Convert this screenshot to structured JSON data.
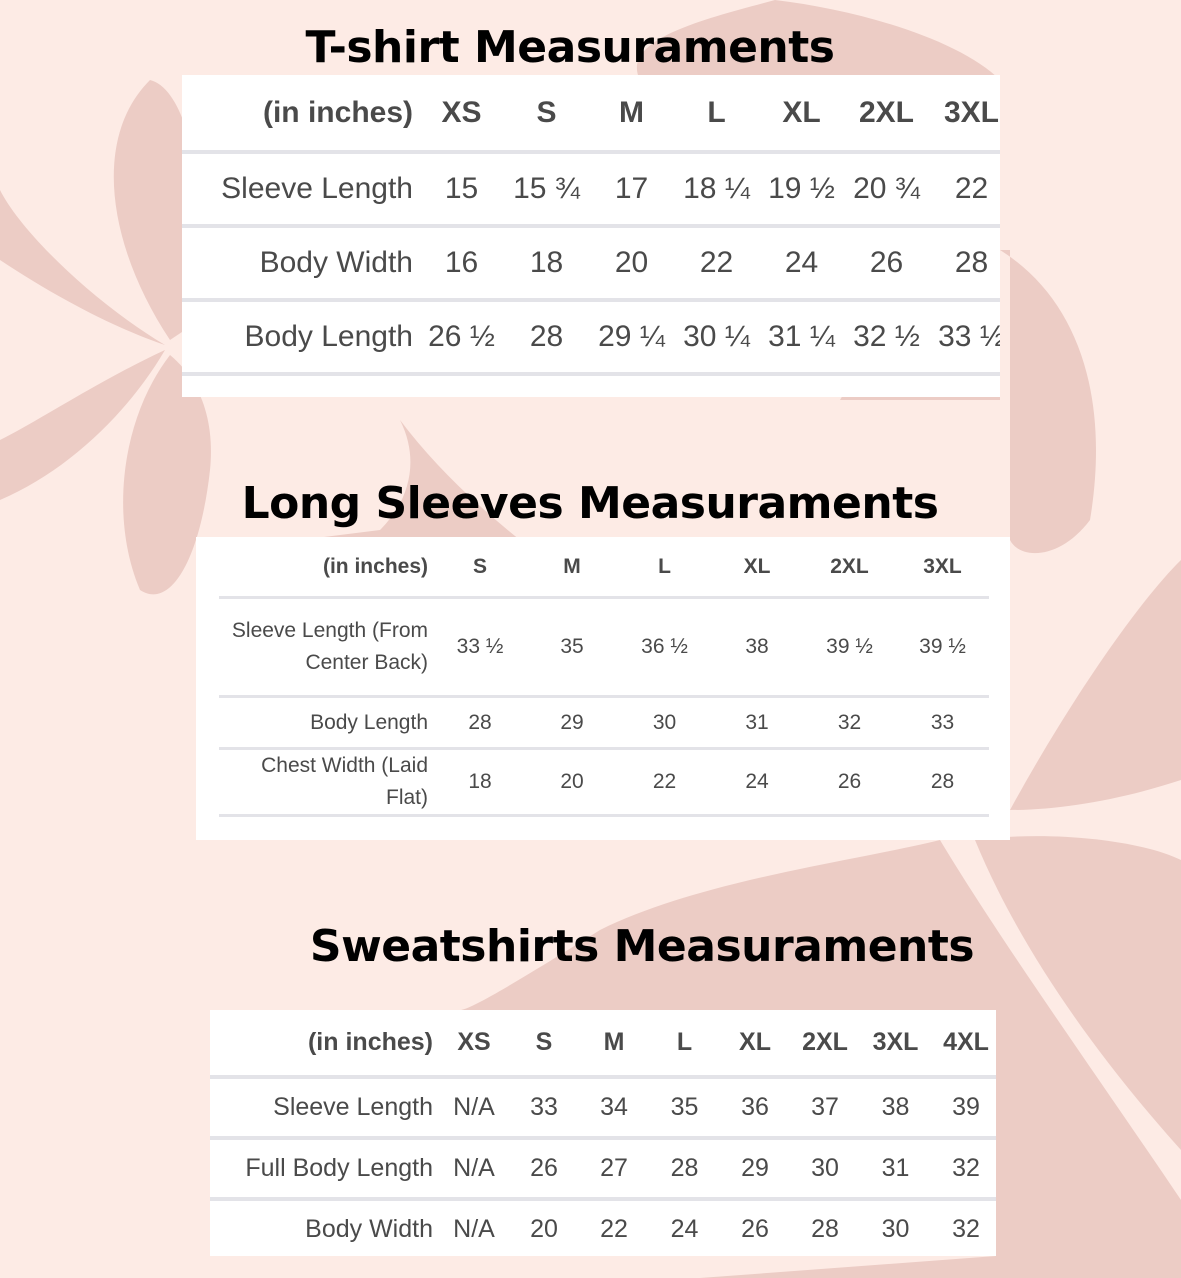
{
  "colors": {
    "background": "#fdebe5",
    "petal": "#ecccc5",
    "table_bg": "#ffffff",
    "text": "#4a4a4a",
    "rule": "#e3e3e8"
  },
  "tshirt": {
    "title": "T-shirt Measuraments",
    "headers": [
      "(in inches)",
      "XS",
      "S",
      "M",
      "L",
      "XL",
      "2XL",
      "3XL"
    ],
    "rows": [
      [
        "Sleeve Length",
        "15",
        "15 ¾",
        "17",
        "18 ¼",
        "19 ½",
        "20 ¾",
        "22"
      ],
      [
        "Body Width",
        "16",
        "18",
        "20",
        "22",
        "24",
        "26",
        "28"
      ],
      [
        "Body Length",
        "26 ½",
        "28",
        "29 ¼",
        "30 ¼",
        "31 ¼",
        "32 ½",
        "33 ½"
      ]
    ]
  },
  "long_sleeves": {
    "title": "Long Sleeves Measuraments",
    "headers": [
      "(in inches)",
      "S",
      "M",
      "L",
      "XL",
      "2XL",
      "3XL"
    ],
    "rows": [
      [
        "Sleeve Length (From Center Back)",
        "33 ½",
        "35",
        "36 ½",
        "38",
        "39 ½",
        "39 ½"
      ],
      [
        "Body Length",
        "28",
        "29",
        "30",
        "31",
        "32",
        "33"
      ],
      [
        "Chest Width (Laid Flat)",
        "18",
        "20",
        "22",
        "24",
        "26",
        "28"
      ]
    ]
  },
  "sweatshirts": {
    "title": "Sweatshirts Measuraments",
    "headers": [
      "(in inches)",
      "XS",
      "S",
      "M",
      "L",
      "XL",
      "2XL",
      "3XL",
      "4XL"
    ],
    "rows": [
      [
        "Sleeve Length",
        "N/A",
        "33",
        "34",
        "35",
        "36",
        "37",
        "38",
        "39"
      ],
      [
        "Full Body Length",
        "N/A",
        "26",
        "27",
        "28",
        "29",
        "30",
        "31",
        "32"
      ],
      [
        "Body Width",
        "N/A",
        "20",
        "22",
        "24",
        "26",
        "28",
        "30",
        "32"
      ]
    ]
  }
}
